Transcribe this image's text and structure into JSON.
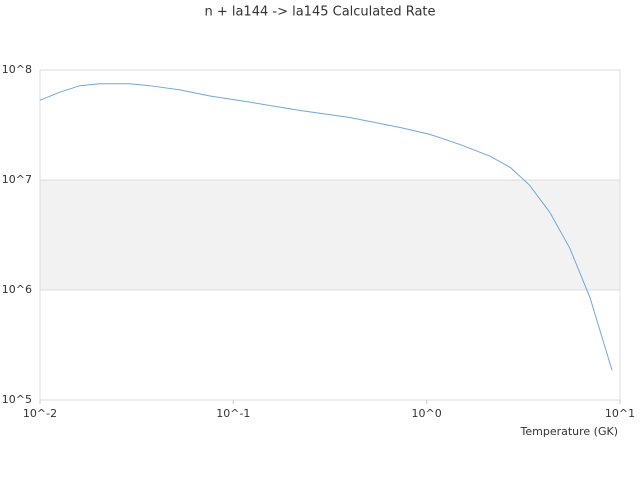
{
  "chart_data": {
    "type": "line",
    "title": "n + la144 -> la145 Calculated Rate",
    "x_label": "Temperature (GK)",
    "x": [
      0.01,
      0.0127,
      0.0161,
      0.0204,
      0.0292,
      0.037,
      0.0529,
      0.0758,
      0.122,
      0.22,
      0.4,
      0.73,
      1.04,
      1.49,
      2.12,
      2.71,
      3.4,
      4.33,
      5.5,
      7.0,
      9.1
    ],
    "series": [
      {
        "color": "#6fa8dc",
        "values": [
          53000000,
          63000000,
          72000000,
          75000000,
          75000000,
          72000000,
          66000000,
          58000000,
          51000000,
          43000000,
          37000000,
          30000000,
          26000000,
          21000000,
          16500000,
          13000000,
          9000000,
          5100000,
          2400000,
          850000,
          186000
        ]
      }
    ],
    "xscale": "log",
    "yscale": "log",
    "xlim": [
      0.01,
      10
    ],
    "ylim": [
      100000,
      100000000
    ],
    "xticks": [
      {
        "value": 0.01,
        "label": "10^-2"
      },
      {
        "value": 0.1,
        "label": "10^-1"
      },
      {
        "value": 1,
        "label": "10^0"
      },
      {
        "value": 10,
        "label": "10^1"
      }
    ],
    "yticks": [
      {
        "value": 100000,
        "label": "10^5"
      },
      {
        "value": 1000000,
        "label": "10^6"
      },
      {
        "value": 10000000,
        "label": "10^7"
      },
      {
        "value": 100000000,
        "label": "10^8"
      }
    ],
    "grid": true,
    "band_color": "#f2f2f2"
  }
}
